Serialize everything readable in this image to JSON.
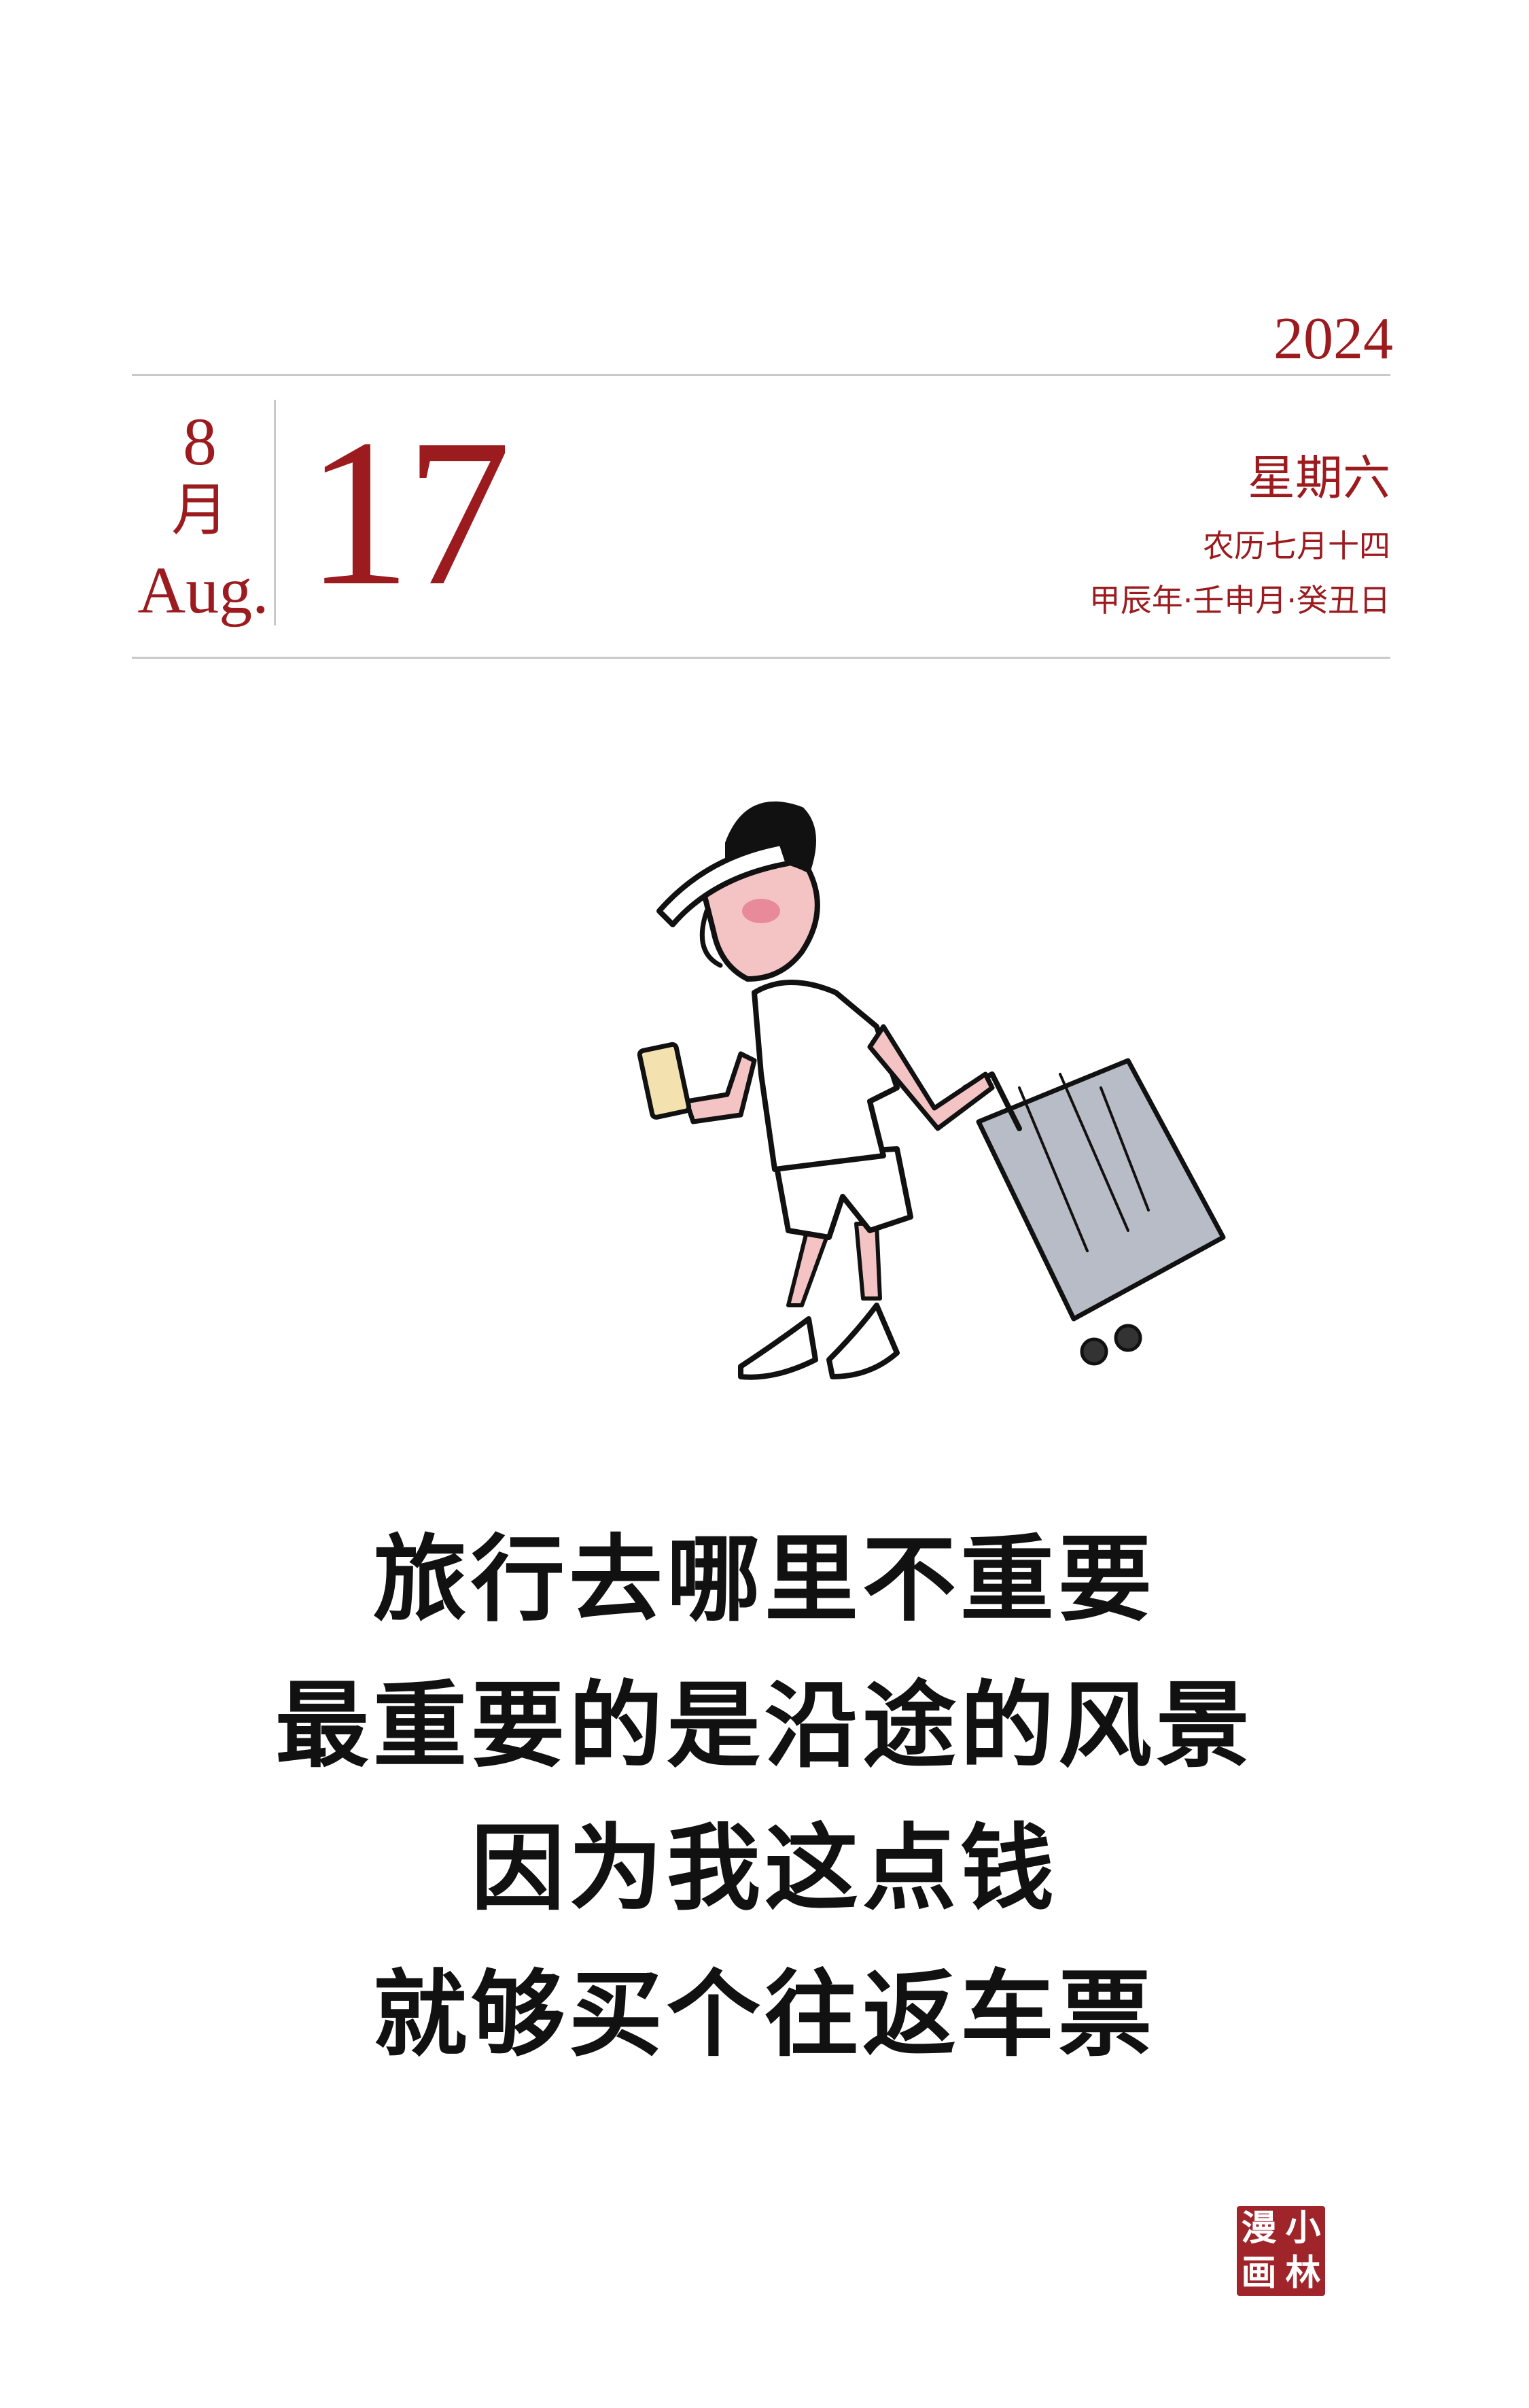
{
  "calendar": {
    "year": "2024",
    "month_number": "8",
    "month_chinese": "月",
    "month_english": "Aug.",
    "day": "17",
    "weekday": "星期六",
    "lunar_date": "农历七月十四",
    "ganzhi": "甲辰年·壬申月·癸丑日",
    "accent_color": "#9b1b1f"
  },
  "verse": {
    "line1": "旅行去哪里不重要",
    "line2": "最重要的是沿途的风景",
    "line3": "因为我这点钱",
    "line4": "就够买个往返车票"
  },
  "seal": {
    "chars": [
      "漫",
      "小",
      "画",
      "林"
    ],
    "color": "#a0252a"
  },
  "illustration": {
    "icon": "traveler-with-suitcase-illustration"
  }
}
